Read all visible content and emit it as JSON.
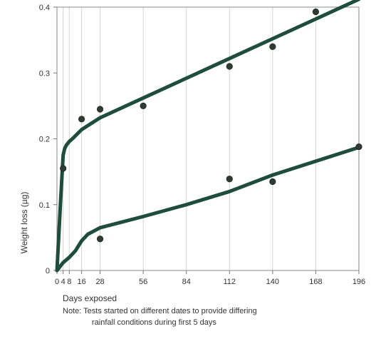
{
  "chart_data": {
    "type": "line",
    "xlabel": "Days exposed",
    "ylabel": "Weight loss (µg)",
    "xlim": [
      0,
      196
    ],
    "ylim": [
      0,
      0.4
    ],
    "xticks": [
      0,
      4,
      8,
      16,
      28,
      56,
      84,
      112,
      140,
      168,
      196
    ],
    "xtick_labels": [
      "0",
      "4",
      "8",
      "16",
      "28",
      "56",
      "84",
      "112",
      "140",
      "168",
      "196"
    ],
    "yticks": [
      0,
      0.1,
      0.2,
      0.3,
      0.4
    ],
    "ytick_labels": [
      "0",
      "0.1",
      "0.2",
      "0.3",
      "0.4"
    ],
    "grid": "vertical",
    "note_lines": [
      "Note: Tests started on different dates to provide differing",
      "rainfall conditions during first 5 days"
    ],
    "series": [
      {
        "color": "#1f4d3c",
        "line": {
          "x": [
            0,
            2,
            4,
            5,
            6,
            8,
            10,
            16,
            28,
            56,
            84,
            112,
            140,
            168,
            196
          ],
          "y": [
            0.0,
            0.09,
            0.175,
            0.185,
            0.19,
            0.196,
            0.2,
            0.214,
            0.232,
            0.262,
            0.292,
            0.322,
            0.352,
            0.382,
            0.412
          ]
        },
        "points": {
          "x": [
            4,
            16,
            28,
            56,
            112,
            140,
            168
          ],
          "y": [
            0.155,
            0.23,
            0.245,
            0.25,
            0.31,
            0.34,
            0.393
          ]
        }
      },
      {
        "color": "#1f4d3c",
        "line": {
          "x": [
            0,
            4,
            8,
            12,
            16,
            20,
            28,
            56,
            84,
            112,
            140,
            168,
            196
          ],
          "y": [
            0.0,
            0.012,
            0.02,
            0.03,
            0.045,
            0.055,
            0.065,
            0.082,
            0.1,
            0.12,
            0.145,
            0.166,
            0.187
          ]
        },
        "points": {
          "x": [
            28,
            112,
            140,
            196
          ],
          "y": [
            0.048,
            0.139,
            0.135,
            0.188
          ]
        }
      }
    ]
  }
}
